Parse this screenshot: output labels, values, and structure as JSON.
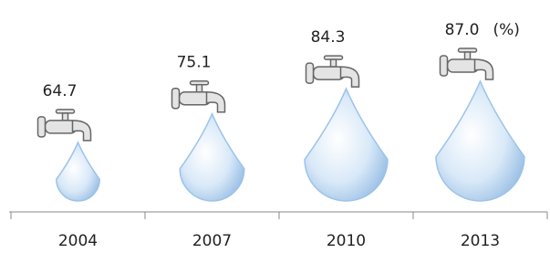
{
  "chart_data": {
    "type": "pictograph",
    "categories": [
      "2004",
      "2007",
      "2010",
      "2013"
    ],
    "values": [
      64.7,
      75.1,
      84.3,
      87.0
    ],
    "value_labels": [
      "64.7",
      "75.1",
      "84.3",
      "87.0"
    ],
    "unit": "(%)",
    "color": "#9cc3ea"
  }
}
